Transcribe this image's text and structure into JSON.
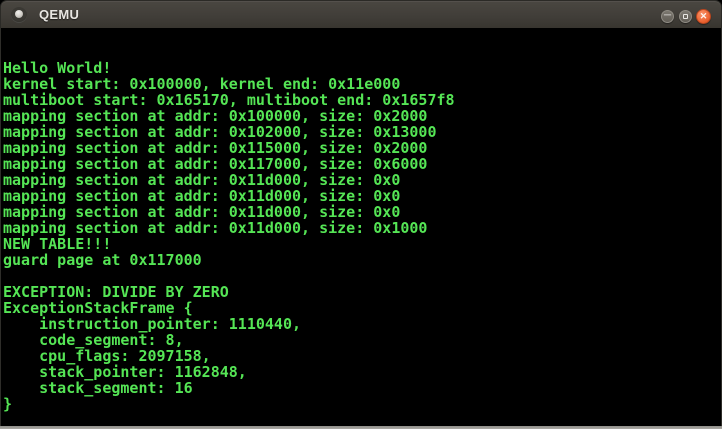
{
  "window": {
    "title": "QEMU",
    "controls": [
      {
        "name": "minimize",
        "glyph": "─"
      },
      {
        "name": "maximize",
        "glyph": ""
      },
      {
        "name": "close",
        "glyph": "✕"
      }
    ]
  },
  "colors": {
    "terminal_background": "#000000",
    "terminal_text_green": "#55e555",
    "titlebar_gray": "#413e39",
    "close_button_orange": "#ef6b3a"
  },
  "terminal": {
    "lines": [
      "Hello World!",
      "kernel start: 0x100000, kernel end: 0x11e000",
      "multiboot start: 0x165170, multiboot end: 0x1657f8",
      "mapping section at addr: 0x100000, size: 0x2000",
      "mapping section at addr: 0x102000, size: 0x13000",
      "mapping section at addr: 0x115000, size: 0x2000",
      "mapping section at addr: 0x117000, size: 0x6000",
      "mapping section at addr: 0x11d000, size: 0x0",
      "mapping section at addr: 0x11d000, size: 0x0",
      "mapping section at addr: 0x11d000, size: 0x0",
      "mapping section at addr: 0x11d000, size: 0x1000",
      "NEW TABLE!!!",
      "guard page at 0x117000",
      "",
      "EXCEPTION: DIVIDE BY ZERO",
      "ExceptionStackFrame {",
      "    instruction_pointer: 1110440,",
      "    code_segment: 8,",
      "    cpu_flags: 2097158,",
      "    stack_pointer: 1162848,",
      "    stack_segment: 16",
      "}"
    ]
  }
}
